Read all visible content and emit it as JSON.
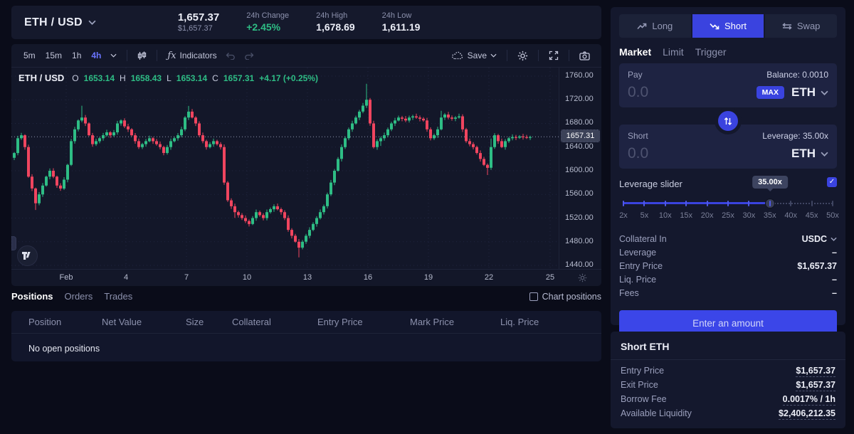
{
  "pair_header": {
    "pair": "ETH / USD",
    "price": "1,657.37",
    "price_usd": "$1,657.37",
    "change_label": "24h Change",
    "change_value": "+2.45%",
    "high_label": "24h High",
    "high_value": "1,678.69",
    "low_label": "24h Low",
    "low_value": "1,611.19"
  },
  "chart_toolbar": {
    "timeframes": [
      "5m",
      "15m",
      "1h",
      "4h"
    ],
    "active_timeframe": "4h",
    "fx_glyph": "ƒx",
    "indicators_label": "Indicators",
    "save_label": "Save"
  },
  "chart_legend": {
    "pair": "ETH / USD",
    "o_label": "O",
    "o": "1653.14",
    "h_label": "H",
    "h": "1658.43",
    "l_label": "L",
    "l": "1653.14",
    "c_label": "C",
    "c": "1657.31",
    "change": "+4.17 (+0.25%)"
  },
  "chart_data": {
    "type": "candlestick",
    "title": "ETH / USD 4h candles, Feb 1 - Feb 25",
    "y_range": [
      1434,
      1774.4
    ],
    "y_ticks": [
      {
        "label": "1760.00",
        "price": 1760
      },
      {
        "label": "1720.00",
        "price": 1720
      },
      {
        "label": "1680.00",
        "price": 1680
      },
      {
        "label": "1640.00",
        "price": 1640
      },
      {
        "label": "1600.00",
        "price": 1600
      },
      {
        "label": "1560.00",
        "price": 1560
      },
      {
        "label": "1520.00",
        "price": 1520
      },
      {
        "label": "1480.00",
        "price": 1480
      },
      {
        "label": "1440.00",
        "price": 1440
      }
    ],
    "x_labels": [
      {
        "label": "Feb",
        "x": 93
      },
      {
        "label": "4",
        "x": 177
      },
      {
        "label": "7",
        "x": 262
      },
      {
        "label": "10",
        "x": 347
      },
      {
        "label": "13",
        "x": 432
      },
      {
        "label": "16",
        "x": 517
      },
      {
        "label": "19",
        "x": 602
      },
      {
        "label": "22",
        "x": 687
      },
      {
        "label": "25",
        "x": 773
      }
    ],
    "last_price": 1657.31,
    "last_price_label": "1657.31",
    "open_first": 1622,
    "closes": [
      1630,
      1655,
      1660,
      1640,
      1590,
      1570,
      1545,
      1560,
      1575,
      1590,
      1600,
      1590,
      1575,
      1570,
      1585,
      1610,
      1650,
      1670,
      1685,
      1690,
      1680,
      1660,
      1645,
      1650,
      1655,
      1660,
      1665,
      1660,
      1665,
      1680,
      1685,
      1675,
      1670,
      1660,
      1650,
      1640,
      1645,
      1650,
      1655,
      1650,
      1645,
      1640,
      1630,
      1640,
      1650,
      1655,
      1660,
      1670,
      1690,
      1700,
      1690,
      1680,
      1660,
      1650,
      1640,
      1645,
      1650,
      1645,
      1640,
      1580,
      1550,
      1540,
      1530,
      1525,
      1520,
      1515,
      1510,
      1520,
      1530,
      1525,
      1520,
      1530,
      1535,
      1540,
      1535,
      1530,
      1520,
      1500,
      1490,
      1480,
      1470,
      1480,
      1490,
      1500,
      1510,
      1520,
      1530,
      1540,
      1560,
      1580,
      1600,
      1620,
      1640,
      1655,
      1670,
      1680,
      1690,
      1700,
      1710,
      1720,
      1680,
      1640,
      1650,
      1655,
      1660,
      1670,
      1680,
      1685,
      1690,
      1688,
      1685,
      1690,
      1692,
      1690,
      1688,
      1685,
      1670,
      1655,
      1660,
      1670,
      1690,
      1695,
      1690,
      1688,
      1690,
      1692,
      1670,
      1650,
      1645,
      1640,
      1630,
      1620,
      1610,
      1605,
      1640,
      1660,
      1650,
      1640,
      1650,
      1655,
      1657,
      1656,
      1658,
      1657,
      1656,
      1657
    ],
    "wick_high_extra": {
      "19": 16,
      "49": 6,
      "99": 24,
      "120": 8,
      "134": 10
    },
    "wick_low_extra": {
      "6": 8,
      "62": 8,
      "80": 12,
      "103": 6,
      "133": 8
    },
    "colors": {
      "up": "#2ebd85",
      "down": "#f0455f"
    }
  },
  "positions_panel": {
    "tabs": [
      "Positions",
      "Orders",
      "Trades"
    ],
    "active_tab": "Positions",
    "chart_positions_label": "Chart positions",
    "columns": [
      "Position",
      "Net Value",
      "Size",
      "Collateral",
      "Entry Price",
      "Mark Price",
      "Liq. Price"
    ],
    "empty_message": "No open positions"
  },
  "trade_panel": {
    "tabs": [
      "Long",
      "Short",
      "Swap"
    ],
    "active_tab": "Short",
    "order_types": [
      "Market",
      "Limit",
      "Trigger"
    ],
    "active_order_type": "Market",
    "pay": {
      "label": "Pay",
      "balance_label": "Balance: 0.0010",
      "placeholder": "0.0",
      "max_label": "MAX",
      "token": "ETH"
    },
    "short": {
      "label": "Short",
      "leverage_label": "Leverage: 35.00x",
      "placeholder": "0.0",
      "token": "ETH"
    },
    "leverage": {
      "label": "Leverage slider",
      "tooltip": "35.00x",
      "checkbox_checked": true,
      "check_glyph": "✓",
      "marks": [
        "2x",
        "5x",
        "10x",
        "15x",
        "20x",
        "25x",
        "30x",
        "35x",
        "40x",
        "45x",
        "50x"
      ],
      "value_index": 7
    },
    "details": [
      {
        "label": "Collateral In",
        "value": "USDC"
      },
      {
        "label": "Leverage",
        "value": "–"
      },
      {
        "label": "Entry Price",
        "value": "$1,657.37"
      },
      {
        "label": "Liq. Price",
        "value": "–"
      },
      {
        "label": "Fees",
        "value": "–"
      }
    ],
    "submit_label": "Enter an amount"
  },
  "short_info": {
    "title": "Short ETH",
    "rows": [
      {
        "label": "Entry Price",
        "value": "$1,657.37"
      },
      {
        "label": "Exit Price",
        "value": "$1,657.37"
      },
      {
        "label": "Borrow Fee",
        "value": "0.0017% / 1h"
      },
      {
        "label": "Available Liquidity",
        "value": "$2,406,212.35"
      }
    ]
  }
}
